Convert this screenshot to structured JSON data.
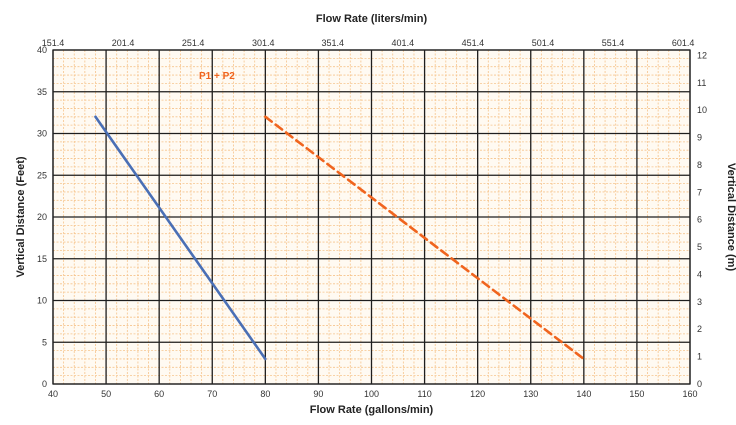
{
  "chart_data": {
    "type": "line",
    "title": "",
    "xlabel": "Flow Rate (gallons/min)",
    "ylabel": "Vertical Distance (Feet)",
    "x2label": "Flow Rate (liters/min)",
    "y2label": "Vertical Distance (m)",
    "xlim": [
      40,
      160
    ],
    "ylim": [
      0,
      40
    ],
    "y2lim": [
      0,
      12.2
    ],
    "x_ticks": [
      40,
      50,
      60,
      70,
      80,
      90,
      100,
      110,
      120,
      130,
      140,
      150,
      160
    ],
    "x_tick_labels": [
      "40",
      "50",
      "60",
      "70",
      "80",
      "90",
      "100",
      "110",
      "120",
      "130",
      "140",
      "150",
      "160"
    ],
    "y_ticks": [
      0,
      5,
      10,
      15,
      20,
      25,
      30,
      35,
      40
    ],
    "y_tick_labels": [
      "0",
      "5",
      "10",
      "15",
      "20",
      "25",
      "30",
      "35",
      "40"
    ],
    "x2_ticks": [
      40,
      53.2,
      66.4,
      79.6,
      92.7,
      105.9,
      119.1,
      132.3,
      145.5,
      158.7
    ],
    "x2_tick_labels": [
      "151.4",
      "201.4",
      "251.4",
      "301.4",
      "351.4",
      "401.4",
      "451.4",
      "501.4",
      "551.4",
      "601.4"
    ],
    "y2_ticks": [
      0,
      1,
      2,
      3,
      4,
      5,
      6,
      7,
      8,
      9,
      10,
      11,
      12
    ],
    "y2_tick_labels": [
      "0",
      "1",
      "2",
      "3",
      "4",
      "5",
      "6",
      "7",
      "8",
      "9",
      "10",
      "11",
      "12"
    ],
    "grid": true,
    "series": [
      {
        "color": "#4a6fb5",
        "style": "solid",
        "x": [
          48,
          80
        ],
        "y": [
          32,
          3
        ]
      },
      {
        "name": "P1 + P2",
        "color": "#f0641e",
        "style": "dashed",
        "x": [
          80,
          140
        ],
        "y": [
          32,
          3
        ]
      }
    ],
    "colors": {
      "minor_grid": "#f6c48c",
      "major_grid": "#1e1e1e",
      "plot_background": "#fffaf2"
    }
  }
}
